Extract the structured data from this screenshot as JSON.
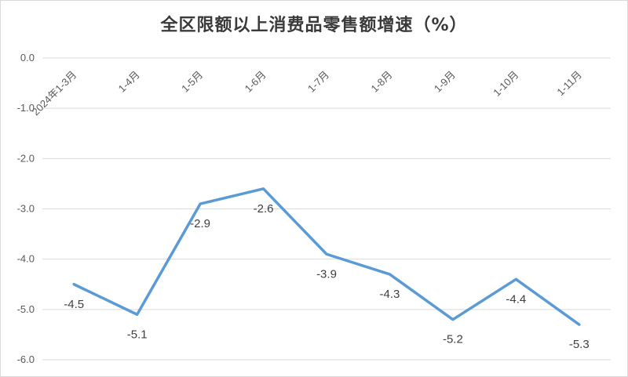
{
  "chart_data": {
    "type": "line",
    "title": "全区限额以上消费品零售额增速（%）",
    "categories": [
      "2024年1-3月",
      "1-4月",
      "1-5月",
      "1-6月",
      "1-7月",
      "1-8月",
      "1-9月",
      "1-10月",
      "1-11月"
    ],
    "series": [
      {
        "values": [
          -4.5,
          -5.1,
          -2.9,
          -2.6,
          -3.9,
          -4.3,
          -5.2,
          -4.4,
          -5.3
        ],
        "color": "#5b9bd5"
      }
    ],
    "data_labels": [
      "-4.5",
      "-5.1",
      "-2.9",
      "-2.6",
      "-3.9",
      "-4.3",
      "-5.2",
      "-4.4",
      "-5.3"
    ],
    "yticks": [
      "0.0",
      "-1.0",
      "-2.0",
      "-3.0",
      "-4.0",
      "-5.0",
      "-6.0"
    ],
    "ylim": [
      -6,
      0
    ],
    "grid": true,
    "legend": "none",
    "category_axis_position": "top",
    "category_label_rotation": "diagonal"
  }
}
